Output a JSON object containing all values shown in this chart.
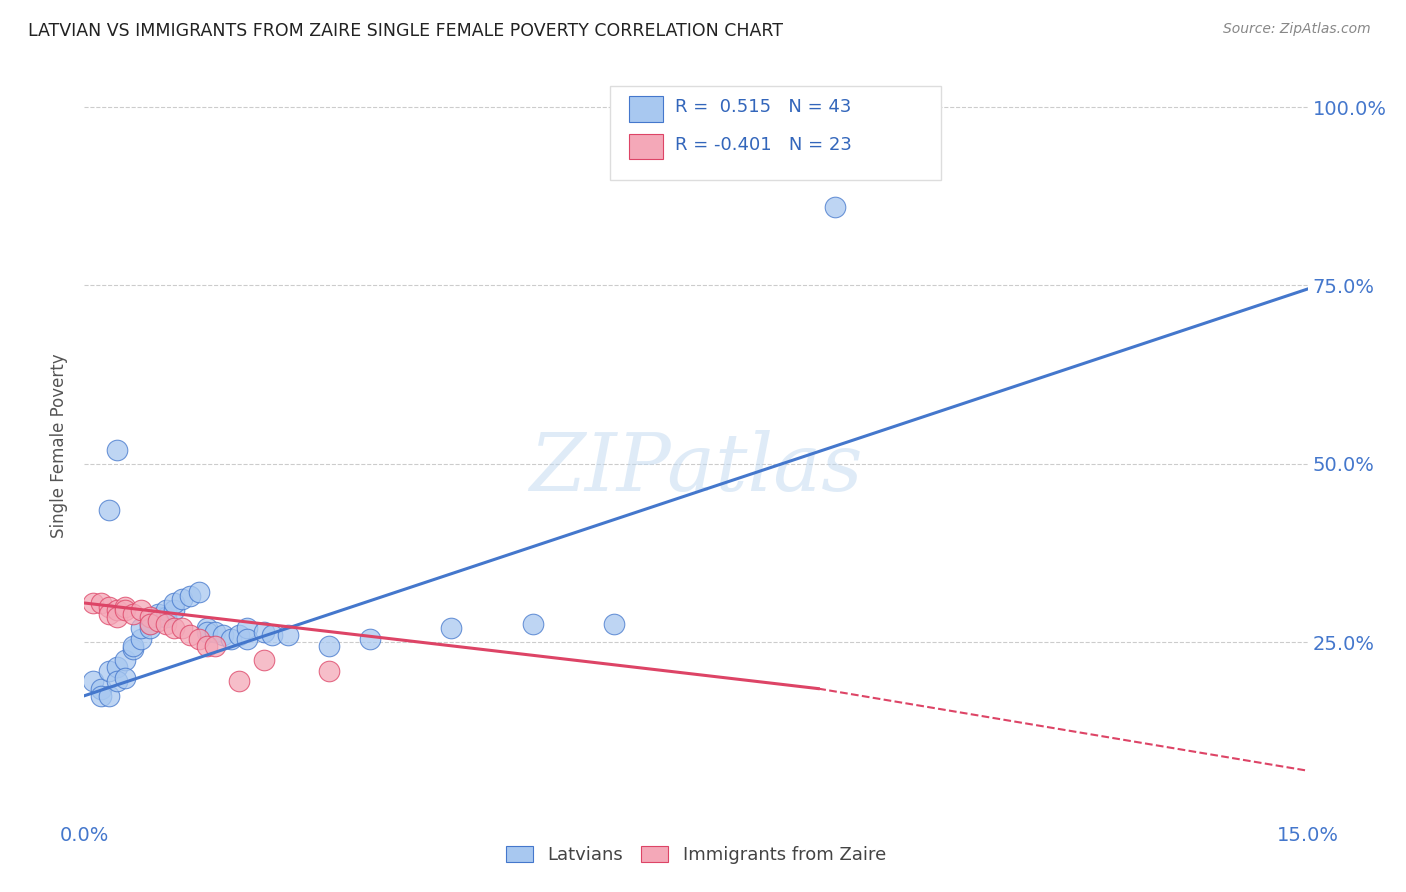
{
  "title": "LATVIAN VS IMMIGRANTS FROM ZAIRE SINGLE FEMALE POVERTY CORRELATION CHART",
  "source": "Source: ZipAtlas.com",
  "ylabel": "Single Female Poverty",
  "legend_blue_label": "R =  0.515   N = 43",
  "legend_pink_label": "R = -0.401   N = 23",
  "legend_bottom_blue": "Latvians",
  "legend_bottom_pink": "Immigrants from Zaire",
  "blue_color": "#A8C8F0",
  "pink_color": "#F4A8B8",
  "blue_line_color": "#4477CC",
  "pink_line_color": "#DD4466",
  "blue_scatter": [
    [
      0.001,
      0.195
    ],
    [
      0.002,
      0.185
    ],
    [
      0.002,
      0.175
    ],
    [
      0.003,
      0.175
    ],
    [
      0.003,
      0.21
    ],
    [
      0.004,
      0.215
    ],
    [
      0.004,
      0.195
    ],
    [
      0.005,
      0.225
    ],
    [
      0.005,
      0.2
    ],
    [
      0.006,
      0.24
    ],
    [
      0.006,
      0.245
    ],
    [
      0.007,
      0.255
    ],
    [
      0.007,
      0.27
    ],
    [
      0.008,
      0.275
    ],
    [
      0.008,
      0.27
    ],
    [
      0.009,
      0.285
    ],
    [
      0.009,
      0.29
    ],
    [
      0.01,
      0.285
    ],
    [
      0.01,
      0.295
    ],
    [
      0.011,
      0.295
    ],
    [
      0.011,
      0.305
    ],
    [
      0.012,
      0.31
    ],
    [
      0.013,
      0.315
    ],
    [
      0.014,
      0.32
    ],
    [
      0.015,
      0.27
    ],
    [
      0.015,
      0.265
    ],
    [
      0.016,
      0.265
    ],
    [
      0.017,
      0.26
    ],
    [
      0.018,
      0.255
    ],
    [
      0.019,
      0.26
    ],
    [
      0.02,
      0.27
    ],
    [
      0.02,
      0.255
    ],
    [
      0.022,
      0.265
    ],
    [
      0.023,
      0.26
    ],
    [
      0.025,
      0.26
    ],
    [
      0.03,
      0.245
    ],
    [
      0.035,
      0.255
    ],
    [
      0.045,
      0.27
    ],
    [
      0.055,
      0.275
    ],
    [
      0.065,
      0.275
    ],
    [
      0.003,
      0.435
    ],
    [
      0.004,
      0.52
    ],
    [
      0.092,
      0.86
    ]
  ],
  "pink_scatter": [
    [
      0.001,
      0.305
    ],
    [
      0.002,
      0.305
    ],
    [
      0.003,
      0.3
    ],
    [
      0.003,
      0.29
    ],
    [
      0.004,
      0.295
    ],
    [
      0.004,
      0.285
    ],
    [
      0.005,
      0.3
    ],
    [
      0.005,
      0.295
    ],
    [
      0.006,
      0.29
    ],
    [
      0.007,
      0.295
    ],
    [
      0.008,
      0.285
    ],
    [
      0.008,
      0.275
    ],
    [
      0.009,
      0.28
    ],
    [
      0.01,
      0.275
    ],
    [
      0.011,
      0.27
    ],
    [
      0.012,
      0.27
    ],
    [
      0.013,
      0.26
    ],
    [
      0.014,
      0.255
    ],
    [
      0.015,
      0.245
    ],
    [
      0.016,
      0.245
    ],
    [
      0.022,
      0.225
    ],
    [
      0.03,
      0.21
    ],
    [
      0.019,
      0.195
    ]
  ],
  "blue_line": [
    0.0,
    0.175,
    0.15,
    0.745
  ],
  "pink_line_solid": [
    0.0,
    0.305,
    0.09,
    0.185
  ],
  "pink_line_dashed": [
    0.09,
    0.185,
    0.15,
    0.07
  ],
  "xlim": [
    0.0,
    0.15
  ],
  "ylim": [
    0.0,
    1.05
  ],
  "xtick_vals": [
    0.0,
    0.0375,
    0.075,
    0.1125,
    0.15
  ],
  "xtick_labels": [
    "0.0%",
    "",
    "",
    "",
    "15.0%"
  ],
  "ytick_vals": [
    0.25,
    0.5,
    0.75,
    1.0
  ],
  "ytick_labels": [
    "25.0%",
    "50.0%",
    "75.0%",
    "100.0%"
  ],
  "grid_yticks": [
    0.25,
    0.5,
    0.75,
    1.0
  ],
  "watermark": "ZIPatlas",
  "background_color": "#FFFFFF",
  "grid_color": "#CCCCCC"
}
